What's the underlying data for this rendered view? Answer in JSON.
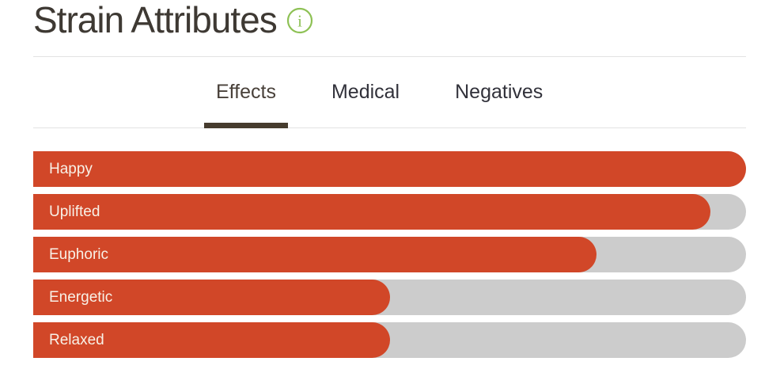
{
  "header": {
    "title": "Strain Attributes",
    "info_glyph": "i"
  },
  "tabs": {
    "items": [
      {
        "label": "Effects",
        "active": true
      },
      {
        "label": "Medical",
        "active": false
      },
      {
        "label": "Negatives",
        "active": false
      }
    ]
  },
  "chart_data": {
    "type": "bar",
    "orientation": "horizontal",
    "title": "Strain Attributes",
    "xlabel": "",
    "ylabel": "",
    "categories": [
      "Happy",
      "Uplifted",
      "Euphoric",
      "Energetic",
      "Relaxed"
    ],
    "values": [
      100,
      95,
      79,
      50,
      50
    ],
    "xlim": [
      0,
      100
    ],
    "grid": false,
    "legend": false,
    "bar_color": "#d14728",
    "track_color": "#cccccc",
    "bar_label_color": "#f8f1e7"
  },
  "colors": {
    "accent_orange": "#d14728",
    "track_gray": "#cccccc",
    "info_green": "#8ec155",
    "active_tab_underline": "#463c2e",
    "divider": "#e3e3e3",
    "title_text": "#3e3933",
    "inactive_tab_text": "#31313a"
  }
}
